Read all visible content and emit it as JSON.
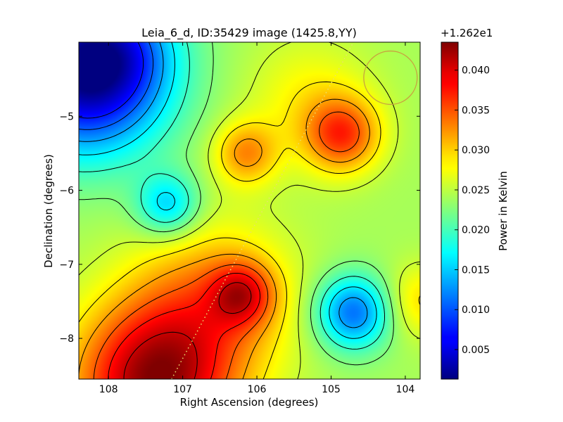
{
  "chart_data": {
    "type": "heatmap",
    "title": "Leia_6_d, ID:35429 image (1425.8,YY)",
    "xlabel": "Right Ascension (degrees)",
    "ylabel": "Declination (degrees)",
    "xlim": [
      108.4,
      103.8
    ],
    "ylim": [
      -8.55,
      -4.0
    ],
    "x_ticks": [
      {
        "value": 108,
        "label": "108"
      },
      {
        "value": 107,
        "label": "107"
      },
      {
        "value": 106,
        "label": "106"
      },
      {
        "value": 105,
        "label": "105"
      },
      {
        "value": 104,
        "label": "104"
      }
    ],
    "y_ticks": [
      {
        "value": -5,
        "label": "−5"
      },
      {
        "value": -6,
        "label": "−6"
      },
      {
        "value": -7,
        "label": "−7"
      },
      {
        "value": -8,
        "label": "−8"
      }
    ],
    "colorbar": {
      "label": "Power in Kelvin",
      "offset_text": "+1.262e1",
      "range": [
        0.0013,
        0.0435
      ],
      "colormap": "jet",
      "ticks": [
        {
          "value": 0.005,
          "label": "0.005"
        },
        {
          "value": 0.01,
          "label": "0.010"
        },
        {
          "value": 0.015,
          "label": "0.015"
        },
        {
          "value": 0.02,
          "label": "0.020"
        },
        {
          "value": 0.025,
          "label": "0.025"
        },
        {
          "value": 0.03,
          "label": "0.030"
        },
        {
          "value": 0.035,
          "label": "0.035"
        },
        {
          "value": 0.04,
          "label": "0.040"
        }
      ]
    },
    "field": {
      "base": 0.024,
      "components": [
        {
          "ra": 108.3,
          "dec": -4.4,
          "sigma": 0.75,
          "amplitude": -0.023
        },
        {
          "ra": 107.8,
          "dec": -4.1,
          "sigma": 0.45,
          "amplitude": -0.004
        },
        {
          "ra": 107.2,
          "dec": -6.2,
          "sigma": 0.3,
          "amplitude": -0.009
        },
        {
          "ra": 107.4,
          "dec": -8.6,
          "sigma": 0.75,
          "amplitude": 0.018
        },
        {
          "ra": 106.2,
          "dec": -7.4,
          "sigma": 0.3,
          "amplitude": 0.01
        },
        {
          "ra": 106.6,
          "dec": -7.5,
          "sigma": 0.75,
          "amplitude": 0.008
        },
        {
          "ra": 104.85,
          "dec": -5.25,
          "sigma": 0.35,
          "amplitude": 0.011
        },
        {
          "ra": 106.15,
          "dec": -5.5,
          "sigma": 0.3,
          "amplitude": 0.008
        },
        {
          "ra": 105.3,
          "dec": -4.8,
          "sigma": 0.6,
          "amplitude": 0.004
        },
        {
          "ra": 104.7,
          "dec": -7.65,
          "sigma": 0.35,
          "amplitude": -0.013
        },
        {
          "ra": 103.8,
          "dec": -7.5,
          "sigma": 0.35,
          "amplitude": 0.005
        }
      ]
    },
    "contours": [
      0.0075,
      0.0105,
      0.0135,
      0.0165,
      0.0195,
      0.0225,
      0.0255,
      0.0285,
      0.0315,
      0.0345,
      0.0375,
      0.0405
    ],
    "overlays": {
      "dotted_line": {
        "color": "#e8e070",
        "points": [
          [
            107.15,
            -8.55
          ],
          [
            104.7,
            -4.0
          ]
        ]
      },
      "circle": {
        "color": "#c8a040",
        "center": [
          104.2,
          -4.48
        ],
        "radius_deg": 0.36
      }
    }
  }
}
